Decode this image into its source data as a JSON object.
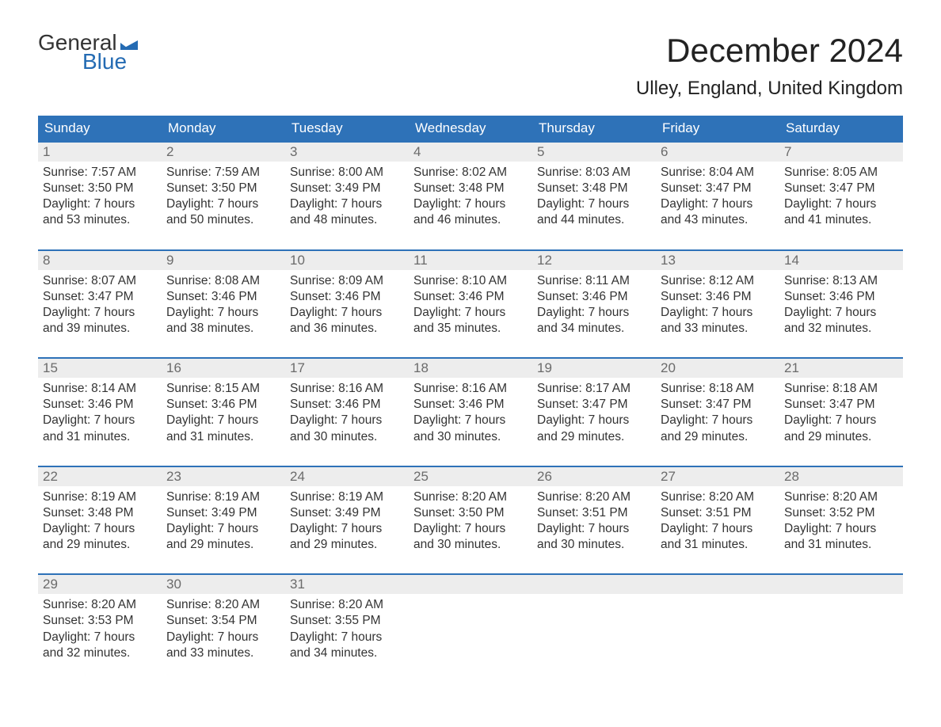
{
  "logo": {
    "word1": "General",
    "word2": "Blue",
    "color_blue": "#246bb3",
    "color_dark": "#333333"
  },
  "title": "December 2024",
  "location": "Ulley, England, United Kingdom",
  "colors": {
    "header_bg": "#2e72b8",
    "header_text": "#ffffff",
    "daynum_bg": "#ededed",
    "daynum_text": "#6b6b6b",
    "body_text": "#333333",
    "rule": "#2e72b8",
    "background": "#ffffff"
  },
  "typography": {
    "title_fontsize": 42,
    "location_fontsize": 24,
    "dow_fontsize": 17,
    "daynum_fontsize": 17,
    "body_fontsize": 15.5,
    "logo_fontsize": 28
  },
  "days_of_week": [
    "Sunday",
    "Monday",
    "Tuesday",
    "Wednesday",
    "Thursday",
    "Friday",
    "Saturday"
  ],
  "labels": {
    "sunrise": "Sunrise:",
    "sunset": "Sunset:",
    "daylight": "Daylight:"
  },
  "weeks": [
    [
      {
        "n": "1",
        "sunrise": "7:57 AM",
        "sunset": "3:50 PM",
        "dl1": "7 hours",
        "dl2": "and 53 minutes."
      },
      {
        "n": "2",
        "sunrise": "7:59 AM",
        "sunset": "3:50 PM",
        "dl1": "7 hours",
        "dl2": "and 50 minutes."
      },
      {
        "n": "3",
        "sunrise": "8:00 AM",
        "sunset": "3:49 PM",
        "dl1": "7 hours",
        "dl2": "and 48 minutes."
      },
      {
        "n": "4",
        "sunrise": "8:02 AM",
        "sunset": "3:48 PM",
        "dl1": "7 hours",
        "dl2": "and 46 minutes."
      },
      {
        "n": "5",
        "sunrise": "8:03 AM",
        "sunset": "3:48 PM",
        "dl1": "7 hours",
        "dl2": "and 44 minutes."
      },
      {
        "n": "6",
        "sunrise": "8:04 AM",
        "sunset": "3:47 PM",
        "dl1": "7 hours",
        "dl2": "and 43 minutes."
      },
      {
        "n": "7",
        "sunrise": "8:05 AM",
        "sunset": "3:47 PM",
        "dl1": "7 hours",
        "dl2": "and 41 minutes."
      }
    ],
    [
      {
        "n": "8",
        "sunrise": "8:07 AM",
        "sunset": "3:47 PM",
        "dl1": "7 hours",
        "dl2": "and 39 minutes."
      },
      {
        "n": "9",
        "sunrise": "8:08 AM",
        "sunset": "3:46 PM",
        "dl1": "7 hours",
        "dl2": "and 38 minutes."
      },
      {
        "n": "10",
        "sunrise": "8:09 AM",
        "sunset": "3:46 PM",
        "dl1": "7 hours",
        "dl2": "and 36 minutes."
      },
      {
        "n": "11",
        "sunrise": "8:10 AM",
        "sunset": "3:46 PM",
        "dl1": "7 hours",
        "dl2": "and 35 minutes."
      },
      {
        "n": "12",
        "sunrise": "8:11 AM",
        "sunset": "3:46 PM",
        "dl1": "7 hours",
        "dl2": "and 34 minutes."
      },
      {
        "n": "13",
        "sunrise": "8:12 AM",
        "sunset": "3:46 PM",
        "dl1": "7 hours",
        "dl2": "and 33 minutes."
      },
      {
        "n": "14",
        "sunrise": "8:13 AM",
        "sunset": "3:46 PM",
        "dl1": "7 hours",
        "dl2": "and 32 minutes."
      }
    ],
    [
      {
        "n": "15",
        "sunrise": "8:14 AM",
        "sunset": "3:46 PM",
        "dl1": "7 hours",
        "dl2": "and 31 minutes."
      },
      {
        "n": "16",
        "sunrise": "8:15 AM",
        "sunset": "3:46 PM",
        "dl1": "7 hours",
        "dl2": "and 31 minutes."
      },
      {
        "n": "17",
        "sunrise": "8:16 AM",
        "sunset": "3:46 PM",
        "dl1": "7 hours",
        "dl2": "and 30 minutes."
      },
      {
        "n": "18",
        "sunrise": "8:16 AM",
        "sunset": "3:46 PM",
        "dl1": "7 hours",
        "dl2": "and 30 minutes."
      },
      {
        "n": "19",
        "sunrise": "8:17 AM",
        "sunset": "3:47 PM",
        "dl1": "7 hours",
        "dl2": "and 29 minutes."
      },
      {
        "n": "20",
        "sunrise": "8:18 AM",
        "sunset": "3:47 PM",
        "dl1": "7 hours",
        "dl2": "and 29 minutes."
      },
      {
        "n": "21",
        "sunrise": "8:18 AM",
        "sunset": "3:47 PM",
        "dl1": "7 hours",
        "dl2": "and 29 minutes."
      }
    ],
    [
      {
        "n": "22",
        "sunrise": "8:19 AM",
        "sunset": "3:48 PM",
        "dl1": "7 hours",
        "dl2": "and 29 minutes."
      },
      {
        "n": "23",
        "sunrise": "8:19 AM",
        "sunset": "3:49 PM",
        "dl1": "7 hours",
        "dl2": "and 29 minutes."
      },
      {
        "n": "24",
        "sunrise": "8:19 AM",
        "sunset": "3:49 PM",
        "dl1": "7 hours",
        "dl2": "and 29 minutes."
      },
      {
        "n": "25",
        "sunrise": "8:20 AM",
        "sunset": "3:50 PM",
        "dl1": "7 hours",
        "dl2": "and 30 minutes."
      },
      {
        "n": "26",
        "sunrise": "8:20 AM",
        "sunset": "3:51 PM",
        "dl1": "7 hours",
        "dl2": "and 30 minutes."
      },
      {
        "n": "27",
        "sunrise": "8:20 AM",
        "sunset": "3:51 PM",
        "dl1": "7 hours",
        "dl2": "and 31 minutes."
      },
      {
        "n": "28",
        "sunrise": "8:20 AM",
        "sunset": "3:52 PM",
        "dl1": "7 hours",
        "dl2": "and 31 minutes."
      }
    ],
    [
      {
        "n": "29",
        "sunrise": "8:20 AM",
        "sunset": "3:53 PM",
        "dl1": "7 hours",
        "dl2": "and 32 minutes."
      },
      {
        "n": "30",
        "sunrise": "8:20 AM",
        "sunset": "3:54 PM",
        "dl1": "7 hours",
        "dl2": "and 33 minutes."
      },
      {
        "n": "31",
        "sunrise": "8:20 AM",
        "sunset": "3:55 PM",
        "dl1": "7 hours",
        "dl2": "and 34 minutes."
      },
      null,
      null,
      null,
      null
    ]
  ]
}
